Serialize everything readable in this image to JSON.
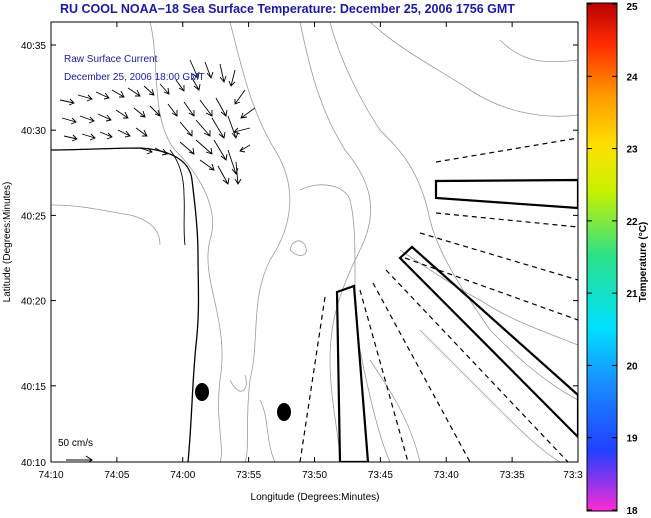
{
  "title": "RU COOL  NOAA−18  Sea Surface Temperature:  December 25, 2006 1756 GMT",
  "map": {
    "overlay_line1": "Raw Surface Current",
    "overlay_line2": "December 25, 2006 18:00 GMT",
    "scale_label": "50 cm/s",
    "xlabel": "Longitude (Degrees:Minutes)",
    "ylabel": "Latitude (Degrees:Minutes)",
    "x_ticks": [
      "74:10",
      "74:05",
      "74:00",
      "73:55",
      "73:50",
      "73:45",
      "73:40",
      "73:35",
      "73:3"
    ],
    "y_ticks": [
      "40:35",
      "40:30",
      "40:25",
      "40:20",
      "40:15",
      "40:10"
    ]
  },
  "colorbar": {
    "label": "Temperature (°C)",
    "ticks": [
      "25",
      "24",
      "23",
      "22",
      "21",
      "20",
      "19",
      "18"
    ],
    "range": [
      18,
      25
    ]
  },
  "colors": {
    "title": "#1a1aa6",
    "contour": "#9a9a9a",
    "coast": "#000000"
  }
}
